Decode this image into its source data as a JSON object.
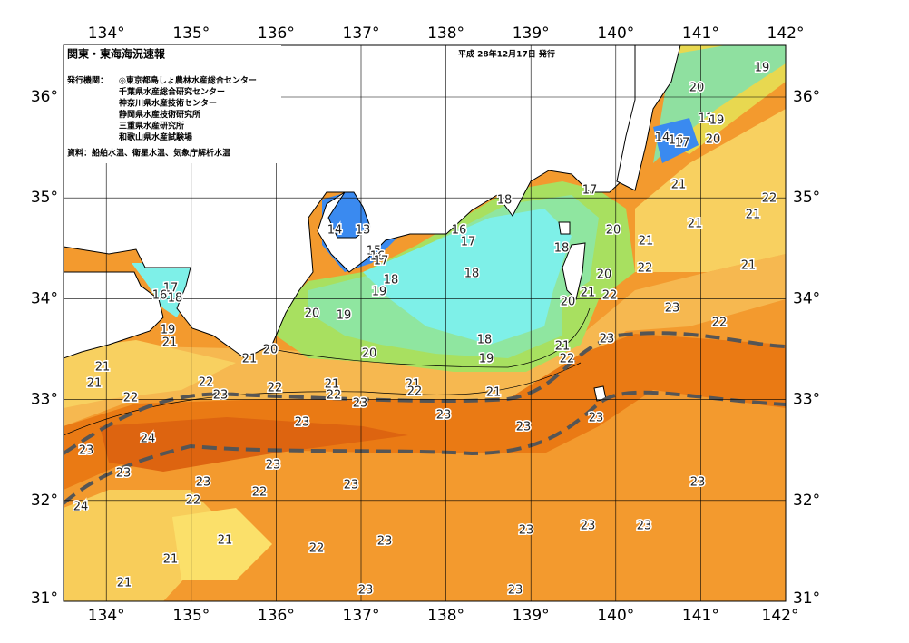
{
  "header": {
    "title": "関東・東海海況速報",
    "date": "平成 28年12月17日 発行",
    "issuers_label": "発行機関：",
    "issuers": [
      "◎東京都島しょ農林水産総合センター",
      "千葉県水産総合研究センター",
      "神奈川県水産技術センター",
      "静岡県水産技術研究所",
      "三重県水産研究所",
      "和歌山県水産試験場"
    ],
    "source": "資料：船舶水温、衛星水温、気象庁解析水温"
  },
  "map": {
    "lon_ticks": [
      {
        "value": 134,
        "label": "134°"
      },
      {
        "value": 135,
        "label": "135°"
      },
      {
        "value": 136,
        "label": "136°"
      },
      {
        "value": 137,
        "label": "137°"
      },
      {
        "value": 138,
        "label": "138°"
      },
      {
        "value": 139,
        "label": "139°"
      },
      {
        "value": 140,
        "label": "140°"
      },
      {
        "value": 141,
        "label": "141°"
      },
      {
        "value": 142,
        "label": "142°"
      }
    ],
    "lat_ticks": [
      {
        "value": 31,
        "label": "31°"
      },
      {
        "value": 32,
        "label": "32°"
      },
      {
        "value": 33,
        "label": "33°"
      },
      {
        "value": 34,
        "label": "34°"
      },
      {
        "value": 35,
        "label": "35°"
      },
      {
        "value": 36,
        "label": "36°"
      }
    ],
    "contour_labels": [
      19,
      20,
      11,
      19,
      14,
      16,
      17,
      20,
      21,
      17,
      22,
      21,
      21,
      20,
      21,
      18,
      21,
      22,
      20,
      21,
      22,
      20,
      23,
      22,
      23,
      21,
      22,
      18,
      16,
      17,
      18,
      18,
      19,
      14,
      13,
      15,
      16,
      17,
      18,
      19,
      19,
      20,
      20,
      21,
      20,
      17,
      16,
      18,
      19,
      21,
      21,
      21,
      22,
      22,
      23,
      22,
      21,
      22,
      21,
      22,
      23,
      21,
      23,
      23,
      23,
      23,
      24,
      23,
      23,
      23,
      23,
      23,
      22,
      22,
      24,
      23,
      21,
      21,
      22,
      23,
      23,
      23,
      23,
      21,
      23,
      23
    ]
  }
}
